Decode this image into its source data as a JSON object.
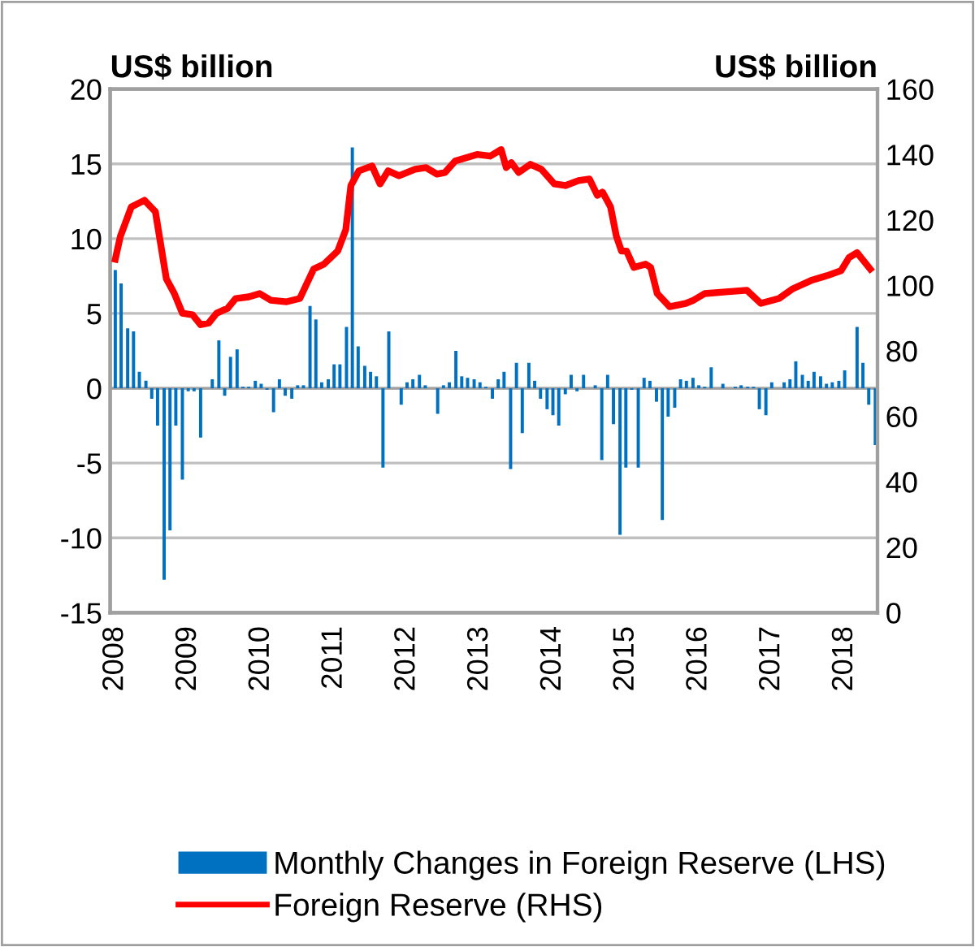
{
  "chart_data": {
    "type": "bar",
    "ylabel": "US$ billion",
    "y2label": "US$ billion",
    "xlim": [
      2007.93,
      2018.45
    ],
    "xticks": [
      2008,
      2009,
      2010,
      2011,
      2012,
      2013,
      2014,
      2015,
      2016,
      2017,
      2018
    ],
    "ylim": [
      -15,
      20
    ],
    "yticks": [
      -15,
      -10,
      -5,
      0,
      5,
      10,
      15,
      20
    ],
    "y2lim": [
      0,
      160
    ],
    "y2ticks": [
      0,
      20,
      40,
      60,
      80,
      100,
      120,
      140,
      160
    ],
    "grid": "y",
    "legend": "bottom",
    "series": [
      {
        "name": "Monthly Changes in Foreign Reserve (LHS)",
        "color": "#0070c0",
        "x": [
          2008.0,
          2008.08,
          2008.17,
          2008.25,
          2008.33,
          2008.42,
          2008.5,
          2008.58,
          2008.67,
          2008.75,
          2008.83,
          2008.92,
          2009.0,
          2009.08,
          2009.17,
          2009.25,
          2009.33,
          2009.42,
          2009.5,
          2009.58,
          2009.67,
          2009.75,
          2009.83,
          2009.92,
          2010.0,
          2010.08,
          2010.17,
          2010.25,
          2010.33,
          2010.42,
          2010.5,
          2010.58,
          2010.67,
          2010.75,
          2010.83,
          2010.92,
          2011.0,
          2011.08,
          2011.17,
          2011.25,
          2011.33,
          2011.42,
          2011.5,
          2011.58,
          2011.67,
          2011.75,
          2011.83,
          2011.92,
          2012.0,
          2012.08,
          2012.17,
          2012.25,
          2012.33,
          2012.42,
          2012.5,
          2012.58,
          2012.67,
          2012.75,
          2012.83,
          2012.92,
          2013.0,
          2013.08,
          2013.17,
          2013.25,
          2013.33,
          2013.42,
          2013.5,
          2013.58,
          2013.67,
          2013.75,
          2013.83,
          2013.92,
          2014.0,
          2014.08,
          2014.17,
          2014.25,
          2014.33,
          2014.42,
          2014.5,
          2014.58,
          2014.67,
          2014.75,
          2014.83,
          2014.92,
          2015.0,
          2015.08,
          2015.17,
          2015.25,
          2015.33,
          2015.42,
          2015.5,
          2015.58,
          2015.67,
          2015.75,
          2015.83,
          2015.92,
          2016.0,
          2016.08,
          2016.17,
          2016.25,
          2016.33,
          2016.42,
          2016.5,
          2016.58,
          2016.67,
          2016.75,
          2016.83,
          2016.92,
          2017.0,
          2017.08,
          2017.17,
          2017.25,
          2017.33,
          2017.42,
          2017.5,
          2017.58,
          2017.67,
          2017.75,
          2017.83,
          2017.92,
          2018.0,
          2018.08,
          2018.17,
          2018.25,
          2018.33,
          2018.42
        ],
        "values": [
          7.9,
          7.0,
          4.0,
          3.8,
          1.1,
          0.5,
          -0.7,
          -2.5,
          -12.8,
          -9.5,
          -2.5,
          -6.1,
          -0.2,
          -0.2,
          -3.3,
          0,
          0.6,
          3.2,
          -0.5,
          2.1,
          2.6,
          0.1,
          0.1,
          0.5,
          0.3,
          -0.1,
          -1.6,
          0.6,
          -0.5,
          -0.7,
          0.2,
          0.2,
          5.5,
          4.6,
          0.4,
          0.6,
          1.6,
          1.6,
          4.1,
          16.1,
          2.8,
          1.5,
          1.1,
          0.8,
          -5.3,
          3.8,
          0,
          -1.1,
          0.4,
          0.6,
          0.9,
          0.2,
          0,
          -1.7,
          0.2,
          0.4,
          2.5,
          0.8,
          0.7,
          0.6,
          0.4,
          0.1,
          -0.7,
          0.6,
          1.1,
          -5.4,
          1.7,
          -3.0,
          1.7,
          0.5,
          -0.7,
          -1.4,
          -1.8,
          -2.5,
          -0.4,
          0.9,
          -0.2,
          0.9,
          0,
          0.2,
          -4.8,
          0.9,
          -2.4,
          -9.8,
          -5.3,
          -0.1,
          -5.3,
          0.7,
          0.5,
          -0.9,
          -8.8,
          -1.9,
          -1.3,
          0.6,
          0.5,
          0.7,
          0.2,
          0.1,
          1.4,
          0,
          0.3,
          0,
          0.1,
          0.2,
          0.1,
          0.1,
          -1.4,
          -1.8,
          0.4,
          0,
          0.4,
          0.6,
          1.8,
          0.9,
          0.5,
          1.1,
          0.8,
          0.3,
          0.4,
          0.5,
          1.2,
          0,
          4.1,
          1.7,
          -1.1,
          -3.8
        ]
      },
      {
        "name": "Foreign Reserve (RHS)",
        "type": "line",
        "axis": "y2",
        "color": "#ff0000",
        "x": [
          2008.0,
          2008.07,
          2008.22,
          2008.4,
          2008.55,
          2008.7,
          2008.81,
          2008.92,
          2009.06,
          2009.17,
          2009.28,
          2009.39,
          2009.54,
          2009.65,
          2009.83,
          2009.98,
          2010.13,
          2010.35,
          2010.53,
          2010.72,
          2010.86,
          2011.05,
          2011.16,
          2011.23,
          2011.34,
          2011.52,
          2011.63,
          2011.74,
          2011.89,
          2012.11,
          2012.26,
          2012.41,
          2012.52,
          2012.66,
          2012.96,
          2013.14,
          2013.29,
          2013.36,
          2013.43,
          2013.53,
          2013.69,
          2013.84,
          2014.02,
          2014.17,
          2014.35,
          2014.5,
          2014.61,
          2014.68,
          2014.79,
          2014.87,
          2014.94,
          2015.01,
          2015.11,
          2015.27,
          2015.34,
          2015.43,
          2015.6,
          2015.82,
          2015.93,
          2016.08,
          2016.37,
          2016.66,
          2016.85,
          2017.1,
          2017.29,
          2017.54,
          2017.76,
          2017.95,
          2018.06,
          2018.17,
          2018.35
        ],
        "values": [
          108,
          115,
          124,
          126,
          122.5,
          102,
          97.5,
          91.5,
          91,
          88,
          88.5,
          91.5,
          93,
          96,
          96.5,
          97.5,
          95.5,
          95,
          96,
          105,
          106.5,
          110.5,
          117,
          130.5,
          135,
          136.5,
          131,
          135,
          133.5,
          135.5,
          136,
          134,
          134.5,
          138,
          140,
          139.5,
          141.5,
          136,
          137.5,
          134.5,
          137,
          135.5,
          131,
          130.5,
          132,
          132.5,
          127.5,
          128.5,
          124,
          115,
          110.5,
          110.5,
          105.5,
          106.5,
          105.5,
          97.5,
          93.5,
          94.5,
          95.5,
          97.5,
          98,
          98.5,
          94.5,
          96,
          99,
          101.5,
          103,
          104.5,
          108.5,
          110,
          105
        ]
      }
    ]
  }
}
